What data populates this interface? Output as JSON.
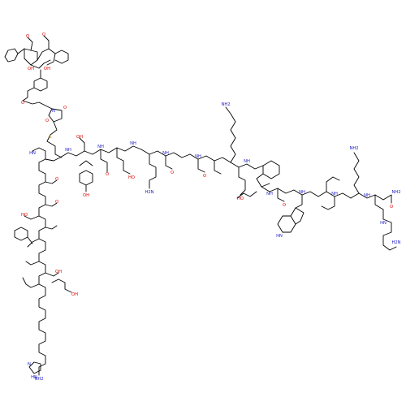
{
  "diagram": {
    "type": "chemical-structure",
    "atom_labels": {
      "O": "O",
      "OH": "OH",
      "HO": "HO",
      "HN": "HN",
      "NH": "NH",
      "NH2": "NH2",
      "H2N": "H2N",
      "N": "N",
      "S": "S"
    },
    "colors": {
      "bond": "#000000",
      "oxygen": "#e00000",
      "nitrogen": "#2020c8",
      "sulfur": "#c8a000"
    }
  }
}
